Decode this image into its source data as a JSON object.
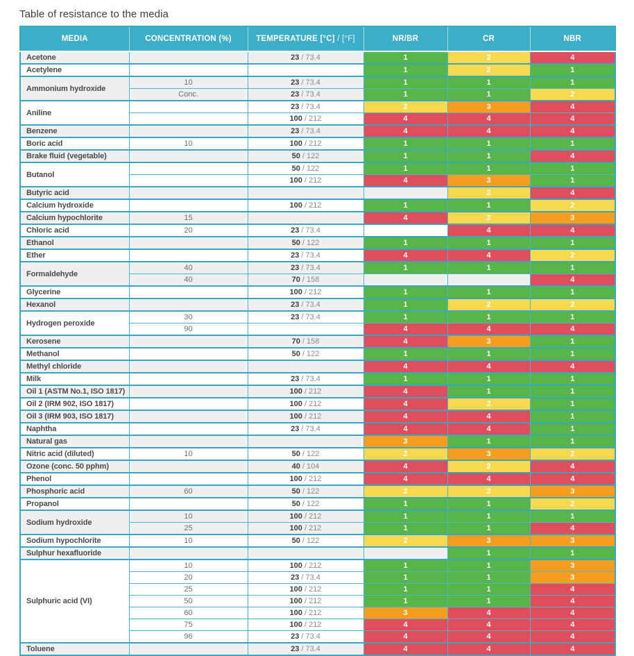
{
  "page": {
    "title": "Table of resistance to the media"
  },
  "colors": {
    "header_bg": "#3caec8",
    "border": "#35a9c2",
    "row_alt_bg": "#efefef",
    "rating": {
      "1": "#57b549",
      "2": "#f8d84e",
      "3": "#f49d1f",
      "4": "#e04d5c"
    }
  },
  "table": {
    "columns": [
      {
        "label": "MEDIA"
      },
      {
        "label": "CONCENTRATION (%)"
      },
      {
        "label": "TEMPERATURE [°C]",
        "suffix": "/ [°F]"
      },
      {
        "label": "NR/BR"
      },
      {
        "label": "CR"
      },
      {
        "label": "NBR"
      }
    ],
    "groups": [
      {
        "media": "Acetone",
        "rows": [
          {
            "conc": "",
            "temp_c": "23",
            "temp_f": "73.4",
            "ratings": [
              1,
              2,
              4
            ]
          }
        ]
      },
      {
        "media": "Acetylene",
        "rows": [
          {
            "conc": "",
            "temp_c": "",
            "temp_f": "",
            "ratings": [
              1,
              2,
              1
            ]
          }
        ]
      },
      {
        "media": "Ammonium hydroxide",
        "rows": [
          {
            "conc": "10",
            "temp_c": "23",
            "temp_f": "73.4",
            "ratings": [
              1,
              1,
              1
            ]
          },
          {
            "conc": "Conc.",
            "temp_c": "23",
            "temp_f": "73.4",
            "ratings": [
              1,
              1,
              2
            ]
          }
        ]
      },
      {
        "media": "Aniline",
        "rows": [
          {
            "conc": "",
            "temp_c": "23",
            "temp_f": "73.4",
            "ratings": [
              2,
              3,
              4
            ]
          },
          {
            "conc": "",
            "temp_c": "100",
            "temp_f": "212",
            "ratings": [
              4,
              4,
              4
            ]
          }
        ]
      },
      {
        "media": "Benzene",
        "rows": [
          {
            "conc": "",
            "temp_c": "23",
            "temp_f": "73.4",
            "ratings": [
              4,
              4,
              4
            ]
          }
        ]
      },
      {
        "media": "Boric acid",
        "rows": [
          {
            "conc": "10",
            "temp_c": "100",
            "temp_f": "212",
            "ratings": [
              1,
              1,
              1
            ]
          }
        ]
      },
      {
        "media": "Brake fluid (vegetable)",
        "rows": [
          {
            "conc": "",
            "temp_c": "50",
            "temp_f": "122",
            "ratings": [
              1,
              1,
              4
            ]
          }
        ]
      },
      {
        "media": "Butanol",
        "rows": [
          {
            "conc": "",
            "temp_c": "50",
            "temp_f": "122",
            "ratings": [
              1,
              1,
              1
            ]
          },
          {
            "conc": "",
            "temp_c": "100",
            "temp_f": "212",
            "ratings": [
              4,
              3,
              1
            ]
          }
        ]
      },
      {
        "media": "Butyric acid",
        "rows": [
          {
            "conc": "",
            "temp_c": "",
            "temp_f": "",
            "ratings": [
              null,
              2,
              4
            ]
          }
        ]
      },
      {
        "media": "Calcium hydroxide",
        "rows": [
          {
            "conc": "",
            "temp_c": "100",
            "temp_f": "212",
            "ratings": [
              1,
              1,
              2
            ]
          }
        ]
      },
      {
        "media": "Calcium hypochlorite",
        "rows": [
          {
            "conc": "15",
            "temp_c": "",
            "temp_f": "",
            "ratings": [
              4,
              2,
              3
            ]
          }
        ]
      },
      {
        "media": "Chloric acid",
        "rows": [
          {
            "conc": "20",
            "temp_c": "23",
            "temp_f": "73.4",
            "ratings": [
              null,
              4,
              4
            ]
          }
        ]
      },
      {
        "media": "Ethanol",
        "rows": [
          {
            "conc": "",
            "temp_c": "50",
            "temp_f": "122",
            "ratings": [
              1,
              1,
              1
            ]
          }
        ]
      },
      {
        "media": "Ether",
        "rows": [
          {
            "conc": "",
            "temp_c": "23",
            "temp_f": "73.4",
            "ratings": [
              4,
              4,
              2
            ]
          }
        ]
      },
      {
        "media": "Formaldehyde",
        "rows": [
          {
            "conc": "40",
            "temp_c": "23",
            "temp_f": "73.4",
            "ratings": [
              1,
              1,
              1
            ]
          },
          {
            "conc": "40",
            "temp_c": "70",
            "temp_f": "158",
            "ratings": [
              null,
              null,
              4
            ]
          }
        ]
      },
      {
        "media": "Glycerine",
        "rows": [
          {
            "conc": "",
            "temp_c": "100",
            "temp_f": "212",
            "ratings": [
              1,
              1,
              1
            ]
          }
        ]
      },
      {
        "media": "Hexanol",
        "rows": [
          {
            "conc": "",
            "temp_c": "23",
            "temp_f": "73.4",
            "ratings": [
              1,
              2,
              2
            ]
          }
        ]
      },
      {
        "media": "Hydrogen peroxide",
        "rows": [
          {
            "conc": "30",
            "temp_c": "23",
            "temp_f": "73.4",
            "ratings": [
              1,
              1,
              1
            ]
          },
          {
            "conc": "90",
            "temp_c": "",
            "temp_f": "",
            "ratings": [
              4,
              4,
              4
            ]
          }
        ]
      },
      {
        "media": "Kerosene",
        "rows": [
          {
            "conc": "",
            "temp_c": "70",
            "temp_f": "158",
            "ratings": [
              4,
              3,
              1
            ]
          }
        ]
      },
      {
        "media": "Methanol",
        "rows": [
          {
            "conc": "",
            "temp_c": "50",
            "temp_f": "122",
            "ratings": [
              1,
              1,
              1
            ]
          }
        ]
      },
      {
        "media": "Methyl chloride",
        "rows": [
          {
            "conc": "",
            "temp_c": "",
            "temp_f": "",
            "ratings": [
              4,
              4,
              4
            ]
          }
        ]
      },
      {
        "media": "Milk",
        "rows": [
          {
            "conc": "",
            "temp_c": "23",
            "temp_f": "73.4",
            "ratings": [
              1,
              1,
              1
            ]
          }
        ]
      },
      {
        "media": "Oil 1 (ASTM No.1, ISO 1817)",
        "rows": [
          {
            "conc": "",
            "temp_c": "100",
            "temp_f": "212",
            "ratings": [
              4,
              1,
              1
            ]
          }
        ]
      },
      {
        "media": "Oil 2 (IRM 902, ISO 1817)",
        "rows": [
          {
            "conc": "",
            "temp_c": "100",
            "temp_f": "212",
            "ratings": [
              4,
              2,
              1
            ]
          }
        ]
      },
      {
        "media": "Oil 3 (IRM 903, ISO 1817)",
        "rows": [
          {
            "conc": "",
            "temp_c": "100",
            "temp_f": "212",
            "ratings": [
              4,
              4,
              1
            ]
          }
        ]
      },
      {
        "media": "Naphtha",
        "rows": [
          {
            "conc": "",
            "temp_c": "23",
            "temp_f": "73.4",
            "ratings": [
              4,
              4,
              1
            ]
          }
        ]
      },
      {
        "media": "Natural gas",
        "rows": [
          {
            "conc": "",
            "temp_c": "",
            "temp_f": "",
            "ratings": [
              3,
              1,
              1
            ]
          }
        ]
      },
      {
        "media": "Nitric acid (diluted)",
        "rows": [
          {
            "conc": "10",
            "temp_c": "50",
            "temp_f": "122",
            "ratings": [
              2,
              3,
              2
            ]
          }
        ]
      },
      {
        "media": "Ozone (conc. 50 pphm)",
        "rows": [
          {
            "conc": "",
            "temp_c": "40",
            "temp_f": "104",
            "ratings": [
              4,
              2,
              4
            ]
          }
        ]
      },
      {
        "media": "Phenol",
        "rows": [
          {
            "conc": "",
            "temp_c": "100",
            "temp_f": "212",
            "ratings": [
              4,
              4,
              4
            ]
          }
        ]
      },
      {
        "media": "Phosphoric acid",
        "rows": [
          {
            "conc": "60",
            "temp_c": "50",
            "temp_f": "122",
            "ratings": [
              2,
              2,
              3
            ]
          }
        ]
      },
      {
        "media": "Propanol",
        "rows": [
          {
            "conc": "",
            "temp_c": "50",
            "temp_f": "122",
            "ratings": [
              1,
              1,
              2
            ]
          }
        ]
      },
      {
        "media": "Sodium hydroxide",
        "rows": [
          {
            "conc": "10",
            "temp_c": "100",
            "temp_f": "212",
            "ratings": [
              1,
              1,
              1
            ]
          },
          {
            "conc": "25",
            "temp_c": "100",
            "temp_f": "212",
            "ratings": [
              1,
              1,
              4
            ]
          }
        ]
      },
      {
        "media": "Sodium hypochlorite",
        "rows": [
          {
            "conc": "10",
            "temp_c": "50",
            "temp_f": "122",
            "ratings": [
              2,
              3,
              3
            ]
          }
        ]
      },
      {
        "media": "Sulphur hexafluoride",
        "rows": [
          {
            "conc": "",
            "temp_c": "",
            "temp_f": "",
            "ratings": [
              null,
              1,
              1
            ]
          }
        ]
      },
      {
        "media": "Sulphuric acid (VI)",
        "rows": [
          {
            "conc": "10",
            "temp_c": "100",
            "temp_f": "212",
            "ratings": [
              1,
              1,
              3
            ]
          },
          {
            "conc": "20",
            "temp_c": "23",
            "temp_f": "73.4",
            "ratings": [
              1,
              1,
              3
            ]
          },
          {
            "conc": "25",
            "temp_c": "100",
            "temp_f": "212",
            "ratings": [
              1,
              1,
              4
            ]
          },
          {
            "conc": "50",
            "temp_c": "100",
            "temp_f": "212",
            "ratings": [
              1,
              1,
              4
            ]
          },
          {
            "conc": "60",
            "temp_c": "100",
            "temp_f": "212",
            "ratings": [
              3,
              4,
              4
            ]
          },
          {
            "conc": "75",
            "temp_c": "100",
            "temp_f": "212",
            "ratings": [
              4,
              4,
              4
            ]
          },
          {
            "conc": "96",
            "temp_c": "23",
            "temp_f": "73.4",
            "ratings": [
              4,
              4,
              4
            ]
          }
        ]
      },
      {
        "media": "Toluene",
        "rows": [
          {
            "conc": "",
            "temp_c": "23",
            "temp_f": "73.4",
            "ratings": [
              4,
              4,
              4
            ]
          }
        ]
      }
    ]
  }
}
